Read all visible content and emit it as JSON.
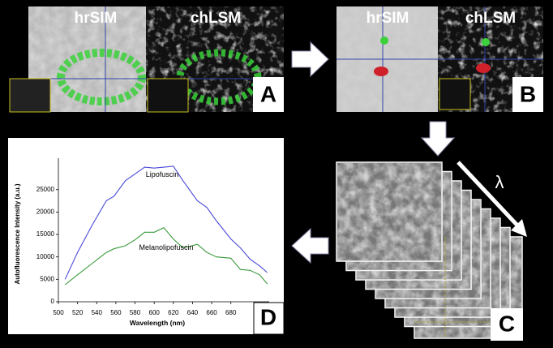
{
  "panels": {
    "A": {
      "left_label": "hrSIM",
      "right_label": "chLSM",
      "letter": "A"
    },
    "B": {
      "left_label": "hrSIM",
      "right_label": "chLSM",
      "letter": "B"
    },
    "C": {
      "letter": "C",
      "axis_symbol": "λ"
    },
    "D": {
      "letter": "D"
    }
  },
  "chart_data": {
    "type": "line",
    "x_label": "Wavelength (nm)",
    "y_label": "Autofluorescence Intensity (a.u.)",
    "x": [
      507,
      520,
      535,
      550,
      558,
      570,
      580,
      590,
      600,
      610,
      620,
      630,
      645,
      655,
      665,
      680,
      690,
      700,
      710,
      718
    ],
    "series": [
      {
        "name": "Lipofuscin",
        "color": "#4848d8",
        "values": [
          5000,
          11000,
          17000,
          22500,
          23500,
          27000,
          28500,
          30000,
          29800,
          30000,
          30200,
          27000,
          22500,
          21000,
          18000,
          14000,
          12000,
          9500,
          8000,
          6500
        ]
      },
      {
        "name": "Melanolipofuscin",
        "color": "#3a9a3a",
        "values": [
          3800,
          6000,
          8500,
          11000,
          11800,
          12500,
          13800,
          15500,
          15500,
          16500,
          14000,
          12000,
          12800,
          11000,
          10000,
          9700,
          7200,
          7000,
          6000,
          4000
        ]
      }
    ],
    "xlim": [
      500,
      720
    ],
    "xticks": [
      500,
      520,
      540,
      560,
      580,
      600,
      620,
      640,
      660,
      680
    ],
    "ylim": [
      0,
      32000
    ],
    "yticks": [
      0,
      5000,
      10000,
      15000,
      20000,
      25000
    ]
  }
}
